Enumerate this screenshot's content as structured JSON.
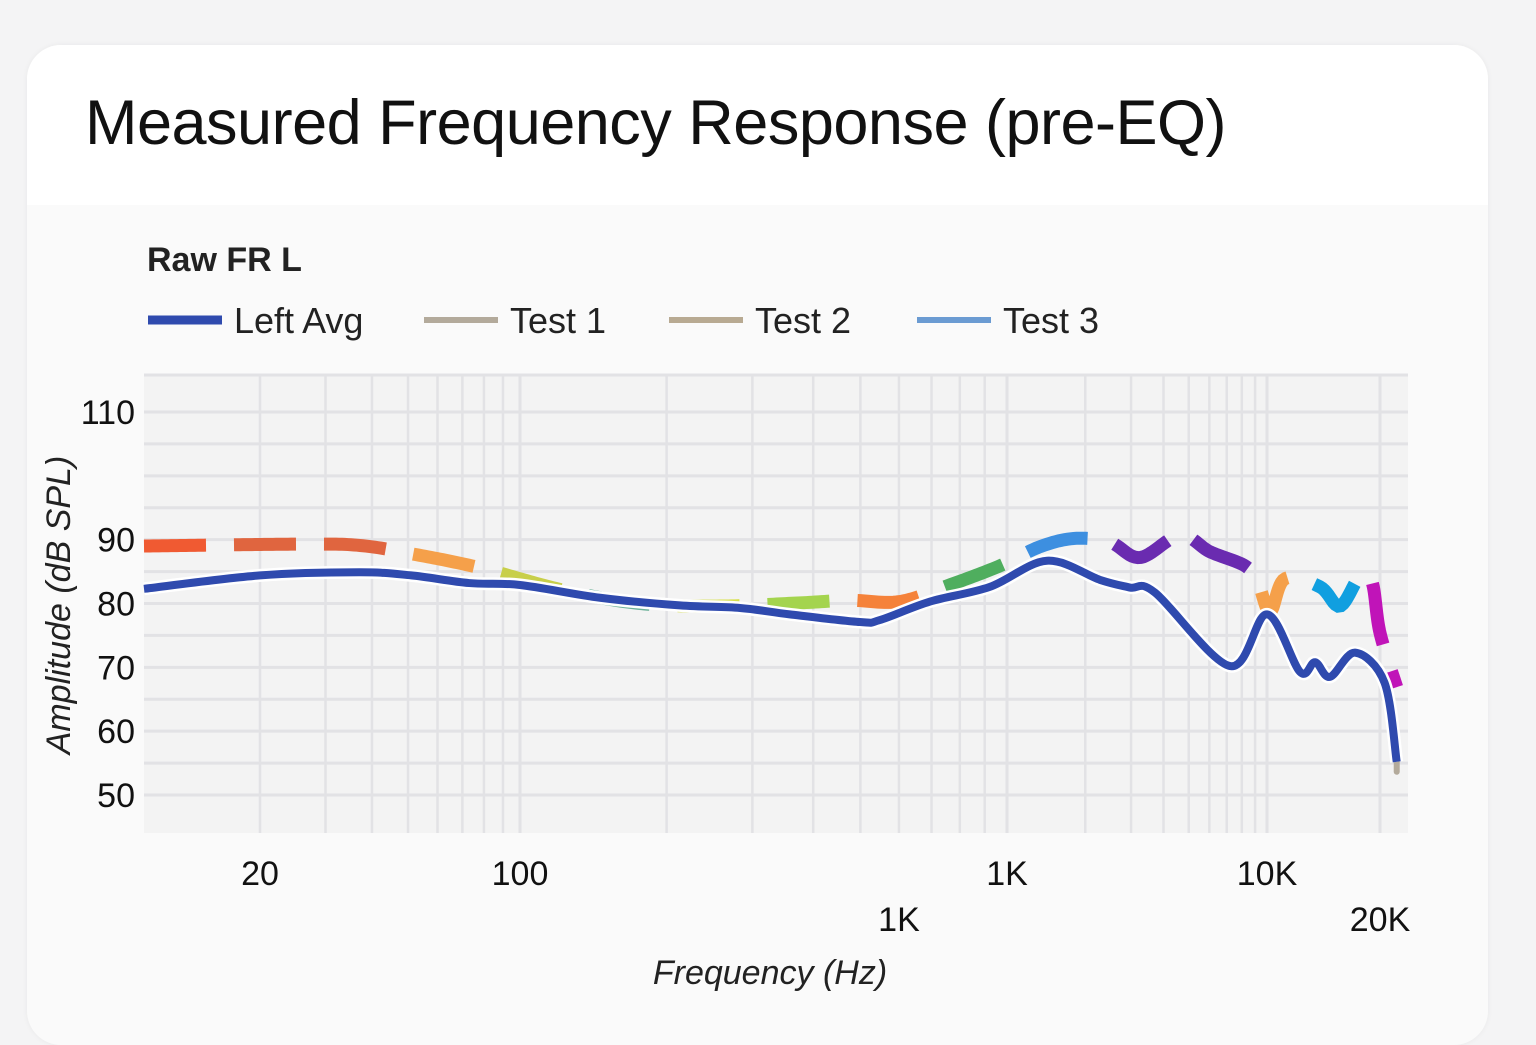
{
  "page": {
    "title": "Measured Frequency Response (pre-EQ)"
  },
  "chart_data": {
    "type": "line",
    "title": "Raw FR L",
    "xlabel": "Frequency (Hz)",
    "ylabel": "Amplitude (dB SPL)",
    "x_scale": "log",
    "xlim": [
      10,
      24000
    ],
    "ylim": [
      44,
      116
    ],
    "grid": true,
    "legend_position": "top-left",
    "y_ticks": [
      110,
      90,
      80,
      70,
      60,
      50
    ],
    "x_tick_labels_row1": [
      {
        "value": 20,
        "label": "20"
      },
      {
        "value": 100,
        "label": "100"
      },
      {
        "value": 1000,
        "label": "1K"
      },
      {
        "value": 10000,
        "label": "10K"
      }
    ],
    "x_tick_labels_row2": [
      {
        "value": 600,
        "label": "1K"
      },
      {
        "value": 20000,
        "label": "20K"
      }
    ],
    "legend": [
      {
        "name": "Left Avg",
        "color": "#2f4aae"
      },
      {
        "name": "Test 1",
        "color": "#b3aa9b"
      },
      {
        "name": "Test 2",
        "color": "#b8aa92"
      },
      {
        "name": "Test 3",
        "color": "#6b9bd2"
      }
    ],
    "series": [
      {
        "name": "Left Avg",
        "color": "#2f4aae",
        "style": "solid",
        "x": [
          10,
          20,
          37,
          51,
          73,
          100,
          146,
          213,
          283,
          358,
          499,
          548,
          695,
          922,
          1425,
          2280,
          2970,
          3710,
          7210,
          10000,
          12240,
          13430,
          14720,
          17170,
          20600,
          22300
        ],
        "y": [
          82.3,
          84.4,
          84.9,
          84.4,
          83.2,
          82.9,
          80.9,
          79.7,
          79.3,
          78.3,
          77.1,
          77.4,
          80.3,
          82.6,
          86.7,
          83.7,
          82.5,
          81.7,
          70.2,
          78.3,
          69.3,
          70.8,
          68.5,
          72.3,
          67.6,
          55.2
        ]
      },
      {
        "style": "dashed-multicolor",
        "dash_colors": [
          "#f05a32",
          "#e0653f",
          "#e0653f",
          "#f5a04a",
          "#c8cf4a",
          "#6fb39a",
          "#d8e04a",
          "#a4d44e",
          "#f5823a",
          "#4fae5e",
          "#3d8fe0",
          "#6a2bb0",
          "#6a2bb0",
          "#f5a04a",
          "#109fe0",
          "#c014b8",
          "#c014b8",
          "#00d0d8",
          "#c014b8",
          "#79c4ea",
          "#f0604a",
          "#0a9ae0",
          "#79c4ea",
          "#f5823a",
          "#5cd070",
          "#00d0d8"
        ],
        "x": [
          10,
          25.6,
          37,
          51,
          78,
          121,
          176,
          257,
          376,
          476,
          602,
          762,
          967,
          1340,
          1826,
          2490,
          3250,
          4630,
          6040,
          8230,
          9230,
          10190,
          11170,
          13850,
          15650,
          17700,
          19060,
          20000,
          22300
        ],
        "y": [
          89.0,
          89.3,
          89.1,
          87.8,
          85.6,
          82.2,
          80.0,
          79.6,
          80.1,
          80.5,
          80.3,
          82.9,
          85.9,
          88.9,
          90.2,
          89.6,
          87.2,
          90.7,
          88.1,
          85.9,
          83.3,
          78.7,
          83.9,
          82.6,
          79.6,
          84.3,
          83.3,
          75.4,
          66.9
        ]
      }
    ]
  }
}
